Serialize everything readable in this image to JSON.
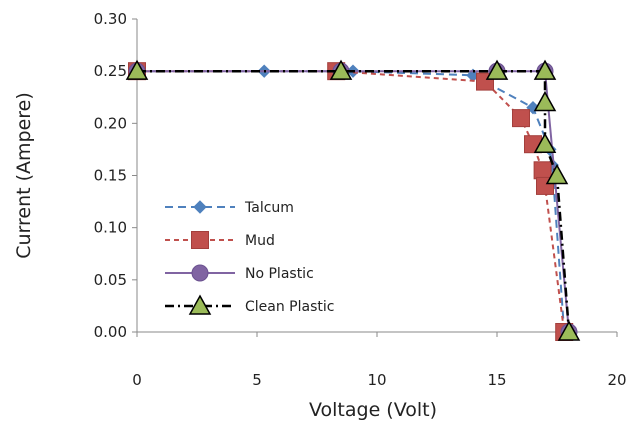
{
  "chart_data": {
    "type": "line",
    "title": "",
    "xlabel": "Voltage (Volt)",
    "ylabel": "Current (Ampere)",
    "xlim": [
      0,
      20
    ],
    "ylim": [
      0,
      0.3
    ],
    "xticks": [
      "0",
      "5",
      "10",
      "15",
      "20"
    ],
    "yticks": [
      "0.00",
      "0.05",
      "0.10",
      "0.15",
      "0.20",
      "0.25",
      "0.30"
    ],
    "grid": false,
    "legend_position": "left",
    "series": [
      {
        "name": "Talcum",
        "color": "#4f81bd",
        "marker": "diamond",
        "dash": "dash",
        "points": [
          [
            0,
            0.25
          ],
          [
            5.3,
            0.25
          ],
          [
            9.0,
            0.25
          ],
          [
            14.0,
            0.246
          ],
          [
            16.5,
            0.215
          ],
          [
            17.2,
            0.175
          ],
          [
            17.3,
            0.16
          ],
          [
            17.8,
            0.0
          ]
        ]
      },
      {
        "name": "Mud",
        "color": "#c0504d",
        "marker": "square",
        "dash": "short-dash",
        "points": [
          [
            0,
            0.25
          ],
          [
            8.3,
            0.25
          ],
          [
            14.5,
            0.24
          ],
          [
            16.0,
            0.205
          ],
          [
            16.5,
            0.18
          ],
          [
            16.9,
            0.155
          ],
          [
            17.0,
            0.14
          ],
          [
            17.8,
            0.0
          ]
        ]
      },
      {
        "name": "No Plastic",
        "color": "#8064a2",
        "marker": "circle",
        "dash": "solid",
        "points": [
          [
            0,
            0.25
          ],
          [
            8.5,
            0.25
          ],
          [
            15.0,
            0.25
          ],
          [
            17.0,
            0.25
          ],
          [
            18.0,
            0.0
          ]
        ]
      },
      {
        "name": "Clean Plastic",
        "color": "#000000",
        "marker": "triangle",
        "dash": "dash-dot",
        "points": [
          [
            0,
            0.25
          ],
          [
            8.5,
            0.25
          ],
          [
            15.0,
            0.25
          ],
          [
            17.0,
            0.25
          ],
          [
            17.0,
            0.22
          ],
          [
            17.0,
            0.18
          ],
          [
            17.5,
            0.15
          ],
          [
            18.0,
            0.0
          ]
        ]
      }
    ]
  }
}
